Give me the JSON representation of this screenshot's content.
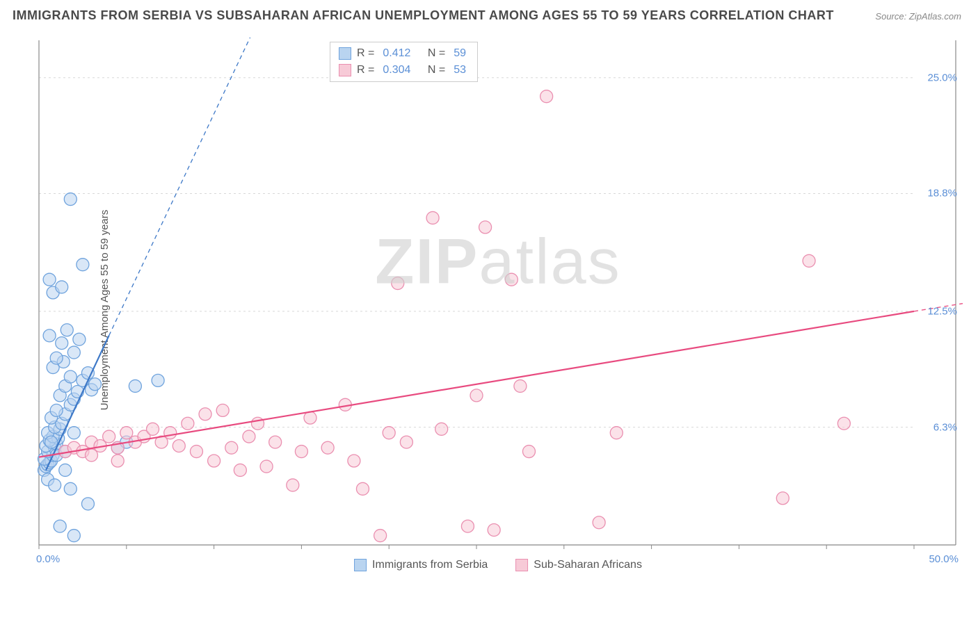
{
  "title": "IMMIGRANTS FROM SERBIA VS SUBSAHARAN AFRICAN UNEMPLOYMENT AMONG AGES 55 TO 59 YEARS CORRELATION CHART",
  "source_label": "Source:",
  "source_value": "ZipAtlas.com",
  "ylabel": "Unemployment Among Ages 55 to 59 years",
  "watermark_bold": "ZIP",
  "watermark_light": "atlas",
  "chart": {
    "type": "scatter",
    "xlim": [
      0,
      50
    ],
    "ylim": [
      0,
      27
    ],
    "origin_y_value": 4.8,
    "yticks": [
      {
        "v": 6.3,
        "label": "6.3%"
      },
      {
        "v": 12.5,
        "label": "12.5%"
      },
      {
        "v": 18.8,
        "label": "18.8%"
      },
      {
        "v": 25.0,
        "label": "25.0%"
      }
    ],
    "xtick_positions": [
      0,
      5,
      10,
      15,
      20,
      25,
      30,
      35,
      40,
      45,
      50
    ],
    "x_start_label": "0.0%",
    "x_end_label": "50.0%",
    "grid_color": "#d8d8d8",
    "axis_color": "#888888",
    "background_color": "#ffffff",
    "marker_radius": 9,
    "marker_stroke_width": 1.3,
    "trend_line_width": 2.2,
    "trend_dash": "6,5"
  },
  "series": [
    {
      "name": "Immigrants from Serbia",
      "fill": "#b9d4f0",
      "stroke": "#6fa3dd",
      "trend_color": "#3d78c7",
      "R": "0.412",
      "N": "59",
      "trend": {
        "x1": 0.4,
        "y1": 4.0,
        "x2": 4.0,
        "y2": 11.2,
        "x2_dash": 13.0,
        "y2_dash": 29.0
      },
      "points": [
        [
          0.3,
          4.0
        ],
        [
          0.4,
          4.2
        ],
        [
          0.5,
          4.3
        ],
        [
          0.6,
          4.4
        ],
        [
          0.7,
          4.5
        ],
        [
          0.3,
          4.6
        ],
        [
          0.8,
          4.8
        ],
        [
          0.5,
          5.0
        ],
        [
          0.9,
          5.2
        ],
        [
          0.4,
          5.3
        ],
        [
          1.0,
          5.4
        ],
        [
          0.6,
          5.6
        ],
        [
          1.1,
          5.7
        ],
        [
          0.8,
          5.8
        ],
        [
          0.5,
          6.0
        ],
        [
          1.2,
          6.2
        ],
        [
          0.9,
          6.3
        ],
        [
          1.3,
          6.5
        ],
        [
          0.7,
          6.8
        ],
        [
          1.5,
          7.0
        ],
        [
          1.0,
          7.2
        ],
        [
          1.8,
          7.5
        ],
        [
          2.0,
          7.8
        ],
        [
          1.2,
          8.0
        ],
        [
          2.2,
          8.2
        ],
        [
          1.5,
          8.5
        ],
        [
          2.5,
          8.8
        ],
        [
          3.0,
          8.3
        ],
        [
          1.8,
          9.0
        ],
        [
          2.8,
          9.2
        ],
        [
          0.8,
          9.5
        ],
        [
          1.4,
          9.8
        ],
        [
          3.2,
          8.6
        ],
        [
          1.0,
          10.0
        ],
        [
          2.0,
          10.3
        ],
        [
          1.3,
          10.8
        ],
        [
          0.6,
          11.2
        ],
        [
          1.6,
          11.5
        ],
        [
          2.3,
          11.0
        ],
        [
          1.0,
          4.8
        ],
        [
          0.5,
          3.5
        ],
        [
          1.8,
          3.0
        ],
        [
          2.8,
          2.2
        ],
        [
          1.2,
          1.0
        ],
        [
          2.0,
          0.5
        ],
        [
          1.5,
          4.0
        ],
        [
          0.9,
          3.2
        ],
        [
          2.5,
          15.0
        ],
        [
          1.8,
          18.5
        ],
        [
          0.8,
          13.5
        ],
        [
          1.3,
          13.8
        ],
        [
          0.6,
          14.2
        ],
        [
          5.5,
          8.5
        ],
        [
          6.8,
          8.8
        ],
        [
          4.5,
          5.2
        ],
        [
          5.0,
          5.5
        ],
        [
          1.5,
          5.0
        ],
        [
          2.0,
          6.0
        ],
        [
          0.7,
          5.5
        ]
      ]
    },
    {
      "name": "Sub-Saharan Africans",
      "fill": "#f7cad7",
      "stroke": "#ea8fb0",
      "trend_color": "#e84a7f",
      "R": "0.304",
      "N": "53",
      "trend": {
        "x1": 0.0,
        "y1": 4.7,
        "x2": 50.0,
        "y2": 12.5,
        "x2_dash": 60.0,
        "y2_dash": 14.0
      },
      "points": [
        [
          1.5,
          5.0
        ],
        [
          2.0,
          5.2
        ],
        [
          2.5,
          5.0
        ],
        [
          3.0,
          5.5
        ],
        [
          3.5,
          5.3
        ],
        [
          4.0,
          5.8
        ],
        [
          4.5,
          5.2
        ],
        [
          5.0,
          6.0
        ],
        [
          5.5,
          5.5
        ],
        [
          6.0,
          5.8
        ],
        [
          6.5,
          6.2
        ],
        [
          7.0,
          5.5
        ],
        [
          7.5,
          6.0
        ],
        [
          8.0,
          5.3
        ],
        [
          8.5,
          6.5
        ],
        [
          9.0,
          5.0
        ],
        [
          9.5,
          7.0
        ],
        [
          10.0,
          4.5
        ],
        [
          10.5,
          7.2
        ],
        [
          11.0,
          5.2
        ],
        [
          11.5,
          4.0
        ],
        [
          12.0,
          5.8
        ],
        [
          12.5,
          6.5
        ],
        [
          13.0,
          4.2
        ],
        [
          13.5,
          5.5
        ],
        [
          14.5,
          3.2
        ],
        [
          15.0,
          5.0
        ],
        [
          15.5,
          6.8
        ],
        [
          16.5,
          5.2
        ],
        [
          17.5,
          7.5
        ],
        [
          18.0,
          4.5
        ],
        [
          19.5,
          0.5
        ],
        [
          20.0,
          6.0
        ],
        [
          20.5,
          14.0
        ],
        [
          21.0,
          5.5
        ],
        [
          22.5,
          17.5
        ],
        [
          23.0,
          6.2
        ],
        [
          24.5,
          1.0
        ],
        [
          25.0,
          8.0
        ],
        [
          25.5,
          17.0
        ],
        [
          26.0,
          0.8
        ],
        [
          27.0,
          14.2
        ],
        [
          27.5,
          8.5
        ],
        [
          28.0,
          5.0
        ],
        [
          29.0,
          24.0
        ],
        [
          32.0,
          1.2
        ],
        [
          33.0,
          6.0
        ],
        [
          42.5,
          2.5
        ],
        [
          44.0,
          15.2
        ],
        [
          46.0,
          6.5
        ],
        [
          18.5,
          3.0
        ],
        [
          3.0,
          4.8
        ],
        [
          4.5,
          4.5
        ]
      ]
    }
  ],
  "legend_layout": {
    "r_label": "R  =",
    "n_label": "N  ="
  }
}
